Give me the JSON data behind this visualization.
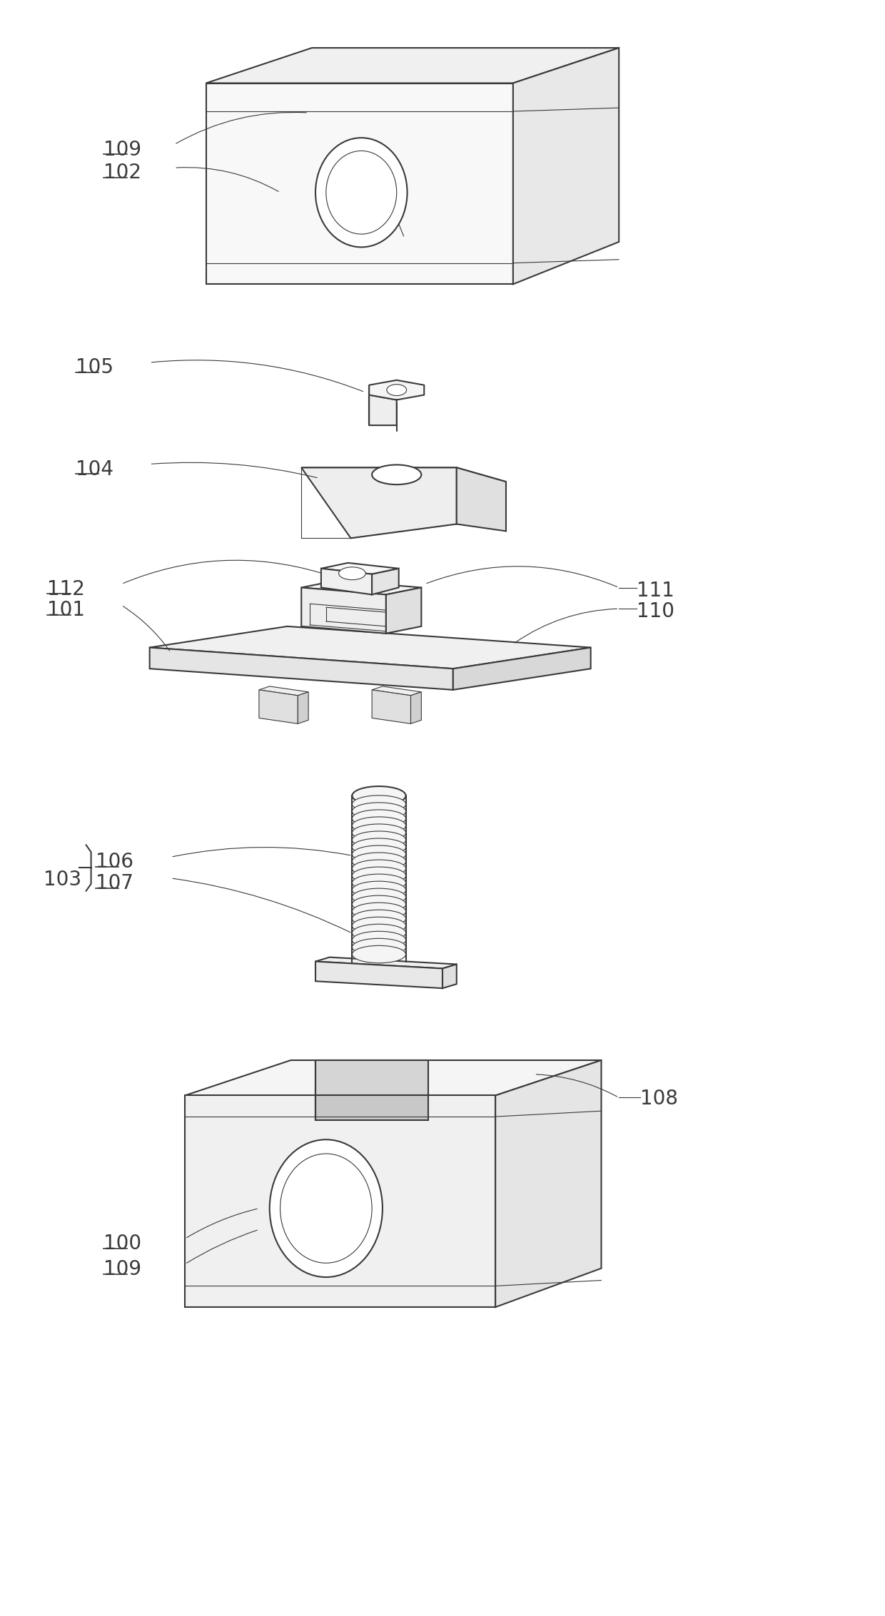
{
  "bg_color": "#ffffff",
  "lc": "#3a3a3a",
  "lw": 1.5,
  "lw_thin": 0.8,
  "fig_width": 12.4,
  "fig_height": 22.65
}
